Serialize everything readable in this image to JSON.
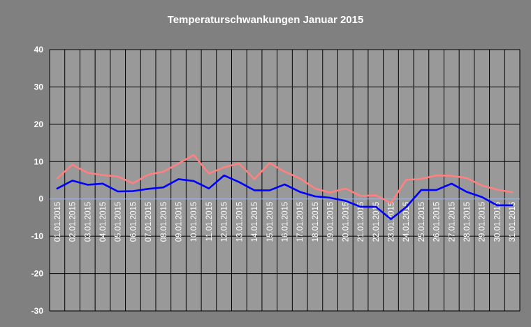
{
  "chart_data": {
    "type": "line",
    "title": "Temperaturschwankungen Januar 2015",
    "xlabel": "",
    "ylabel": "",
    "ylim": [
      -30,
      40
    ],
    "yticks": [
      40,
      30,
      20,
      10,
      0,
      -10,
      -20,
      -30
    ],
    "grid": true,
    "legend": "none",
    "categories": [
      "01.01.2015",
      "02.01.2015",
      "03.01.2015",
      "04.01.2015",
      "05.01.2015",
      "06.01.2015",
      "07.01.2015",
      "08.01.2015",
      "09.01.2015",
      "10.01.2015",
      "11.01.2015",
      "12.01.2015",
      "13.01.2015",
      "14.01.2015",
      "15.01.2015",
      "16.01.2015",
      "17.01.2015",
      "18.01.2015",
      "19.01.2015",
      "20.01.2015",
      "21.01.2015",
      "22.01.2015",
      "23.01.2015",
      "24.01.2015",
      "25.01.2015",
      "26.01.2015",
      "27.01.2015",
      "28.01.2015",
      "29.01.2015",
      "30.01.2015",
      "31.01.2015"
    ],
    "series": [
      {
        "color": "#ff8080",
        "values": [
          5.5,
          9.2,
          7.0,
          6.4,
          6.0,
          4.2,
          6.5,
          7.3,
          9.5,
          11.8,
          6.8,
          8.5,
          9.5,
          5.3,
          9.6,
          7.3,
          5.5,
          2.8,
          1.7,
          2.8,
          0.8,
          1.0,
          -1.1,
          5.1,
          5.4,
          6.3,
          6.2,
          5.6,
          3.6,
          2.5,
          1.8
        ]
      },
      {
        "color": "#0000ff",
        "values": [
          2.8,
          4.9,
          3.8,
          4.1,
          2.0,
          2.1,
          2.7,
          3.1,
          5.3,
          4.8,
          2.8,
          6.3,
          4.5,
          2.3,
          2.3,
          3.9,
          1.9,
          0.7,
          0.3,
          -0.5,
          -2.1,
          -2.1,
          -5.4,
          -2.2,
          2.4,
          2.4,
          4.1,
          1.9,
          0.5,
          -1.7,
          -1.7
        ]
      }
    ],
    "colors": {
      "background": "#808080",
      "plot_background": "#999999",
      "grid": "#000000",
      "zero_line": "#9fb6e6"
    }
  }
}
